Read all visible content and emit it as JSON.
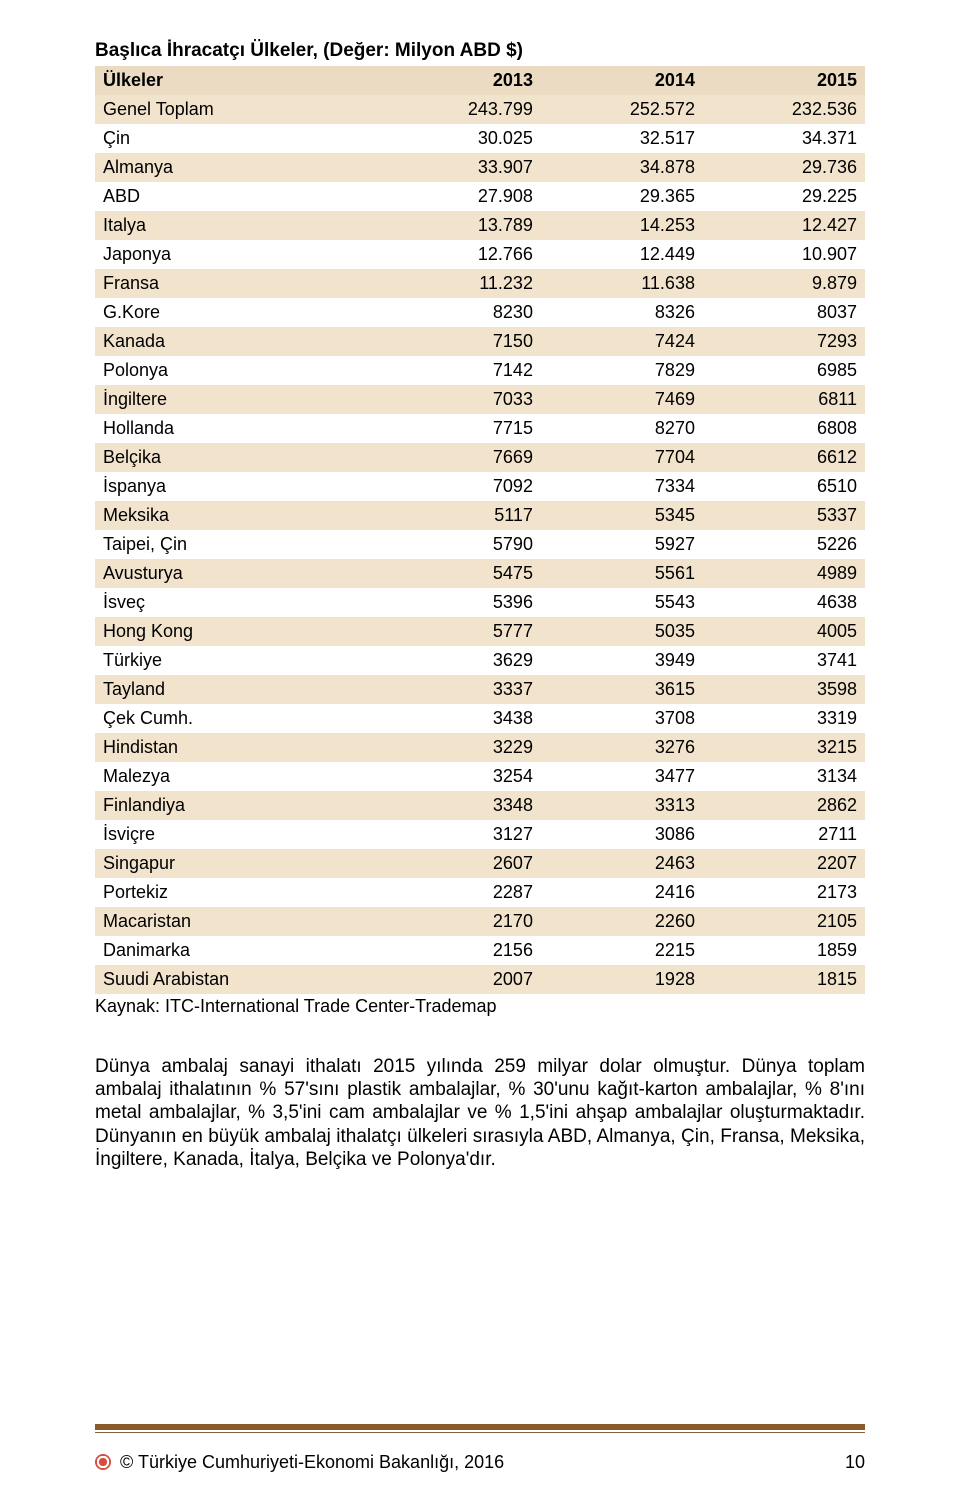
{
  "colors": {
    "zebra_even": "#ffffff",
    "zebra_odd": "#f2e3cc",
    "header_bg": "#eadbc2",
    "rule_thick": "#8a5a2b",
    "rule_thin": "#806640",
    "text": "#000000"
  },
  "title": "Başlıca İhracatçı Ülkeler, (Değer: Milyon ABD $)",
  "table": {
    "columns": [
      "Ülkeler",
      "2013",
      "2014",
      "2015"
    ],
    "col_align": [
      "left",
      "right",
      "right",
      "right"
    ],
    "rows": [
      [
        "Genel Toplam",
        "243.799",
        "252.572",
        "232.536"
      ],
      [
        "Çin",
        "30.025",
        "32.517",
        "34.371"
      ],
      [
        "Almanya",
        "33.907",
        "34.878",
        "29.736"
      ],
      [
        "ABD",
        "27.908",
        "29.365",
        "29.225"
      ],
      [
        "Italya",
        "13.789",
        "14.253",
        "12.427"
      ],
      [
        "Japonya",
        "12.766",
        "12.449",
        "10.907"
      ],
      [
        "Fransa",
        "11.232",
        "11.638",
        "9.879"
      ],
      [
        "G.Kore",
        "8230",
        "8326",
        "8037"
      ],
      [
        "Kanada",
        "7150",
        "7424",
        "7293"
      ],
      [
        "Polonya",
        "7142",
        "7829",
        "6985"
      ],
      [
        "İngiltere",
        "7033",
        "7469",
        "6811"
      ],
      [
        "Hollanda",
        "7715",
        "8270",
        "6808"
      ],
      [
        "Belçika",
        "7669",
        "7704",
        "6612"
      ],
      [
        "İspanya",
        "7092",
        "7334",
        "6510"
      ],
      [
        "Meksika",
        "5117",
        "5345",
        "5337"
      ],
      [
        "Taipei, Çin",
        "5790",
        "5927",
        "5226"
      ],
      [
        "Avusturya",
        "5475",
        "5561",
        "4989"
      ],
      [
        "İsveç",
        "5396",
        "5543",
        "4638"
      ],
      [
        "Hong Kong",
        "5777",
        "5035",
        "4005"
      ],
      [
        "Türkiye",
        "3629",
        "3949",
        "3741"
      ],
      [
        "Tayland",
        "3337",
        "3615",
        "3598"
      ],
      [
        "Çek Cumh.",
        "3438",
        "3708",
        "3319"
      ],
      [
        "Hindistan",
        "3229",
        "3276",
        "3215"
      ],
      [
        "Malezya",
        "3254",
        "3477",
        "3134"
      ],
      [
        "Finlandiya",
        "3348",
        "3313",
        "2862"
      ],
      [
        "İsviçre",
        "3127",
        "3086",
        "2711"
      ],
      [
        "Singapur",
        "2607",
        "2463",
        "2207"
      ],
      [
        "Portekiz",
        "2287",
        "2416",
        "2173"
      ],
      [
        "Macaristan",
        "2170",
        "2260",
        "2105"
      ],
      [
        "Danimarka",
        "2156",
        "2215",
        "1859"
      ],
      [
        "Suudi Arabistan",
        "2007",
        "1928",
        "1815"
      ]
    ]
  },
  "caption": "Kaynak: ITC-International Trade Center-Trademap",
  "paragraph": "Dünya ambalaj sanayi ithalatı 2015 yılında 259 milyar dolar olmuştur. Dünya toplam ambalaj ithalatının  % 57'sını plastik ambalajlar, % 30'unu kağıt-karton ambalajlar,  % 8'ını metal ambalajlar, % 3,5'ini cam ambalajlar ve % 1,5'ini ahşap ambalajlar oluşturmaktadır. Dünyanın en büyük ambalaj ithalatçı ülkeleri sırasıyla ABD, Almanya, Çin, Fransa, Meksika, İngiltere, Kanada, İtalya, Belçika ve Polonya'dır.",
  "footer": {
    "text": "Türkiye Cumhuriyeti-Ekonomi Bakanlığı, 2016",
    "copyright": "©",
    "page": "10"
  }
}
